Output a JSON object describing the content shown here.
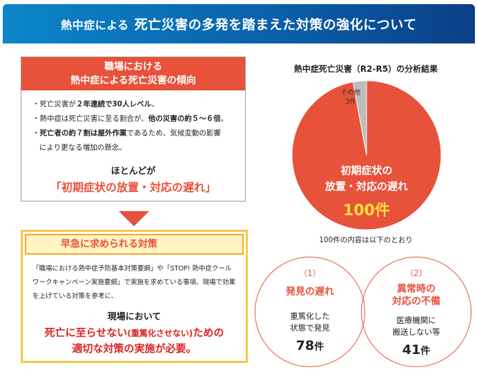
{
  "header": {
    "prefix": "熱中症による",
    "title": "死亡災害の多発を踏まえた対策の強化について"
  },
  "trend": {
    "title_line1": "職場における",
    "title_line2": "熱中症による死亡災害の傾向",
    "bullets": [
      {
        "plain1": "・死亡災害が",
        "bold": "２年連続で30人レベル",
        "plain2": "。"
      },
      {
        "plain1": "・熱中症は死亡災害に至る割合が、",
        "bold": "他の災害の約５～６倍",
        "plain2": "。"
      },
      {
        "plain1": "・",
        "bold": "死亡者の約７割は屋外作業",
        "plain2": "であるため、気候変動の影響"
      }
    ],
    "bullet3_cont": "により更なる増加の懸念。",
    "most": "ほとんどが",
    "cause": "「初期症状の放置・対応の遅れ」"
  },
  "measures": {
    "title": "早急に求められる対策",
    "text": "「職場における熱中症予防基本対策要綱」や「STOP! 熱中症クールワークキャンペーン実施要綱」で実施を求めている事項、現場で効果を上げている対策を参考に、",
    "lead": "現場において",
    "red1a": "死亡に至らせない",
    "red1b": "(重篤化させない)",
    "red1c": "ための",
    "red2": "適切な対策の実施が必要。"
  },
  "chart_data": {
    "type": "pie",
    "title": "熱中症死亡災害（R2-R5）の分析結果",
    "slices": [
      {
        "label": "初期症状の放置・対応の遅れ",
        "value": 100,
        "value_label": "100件",
        "color": "#e8513a"
      },
      {
        "label": "その他",
        "value": 3,
        "value_label": "3件",
        "color": "#bdbdbd"
      }
    ]
  },
  "colors": {
    "accent": "#e8513a",
    "header_blue": "#0a5ea8",
    "yellow": "#f6c944",
    "value_yellow": "#ffe03a"
  },
  "breakdown": {
    "note": "100件の内容は以下のとおり",
    "items": [
      {
        "num": "（1）",
        "title1": "発見の遅れ",
        "title2": "",
        "desc1": "重篤化した",
        "desc2": "状態で発見",
        "count": "78",
        "unit": "件"
      },
      {
        "num": "（2）",
        "title1": "異常時の",
        "title2": "対応の不備",
        "desc1": "医療機関に",
        "desc2": "搬送しない等",
        "count": "41",
        "unit": "件"
      }
    ]
  }
}
